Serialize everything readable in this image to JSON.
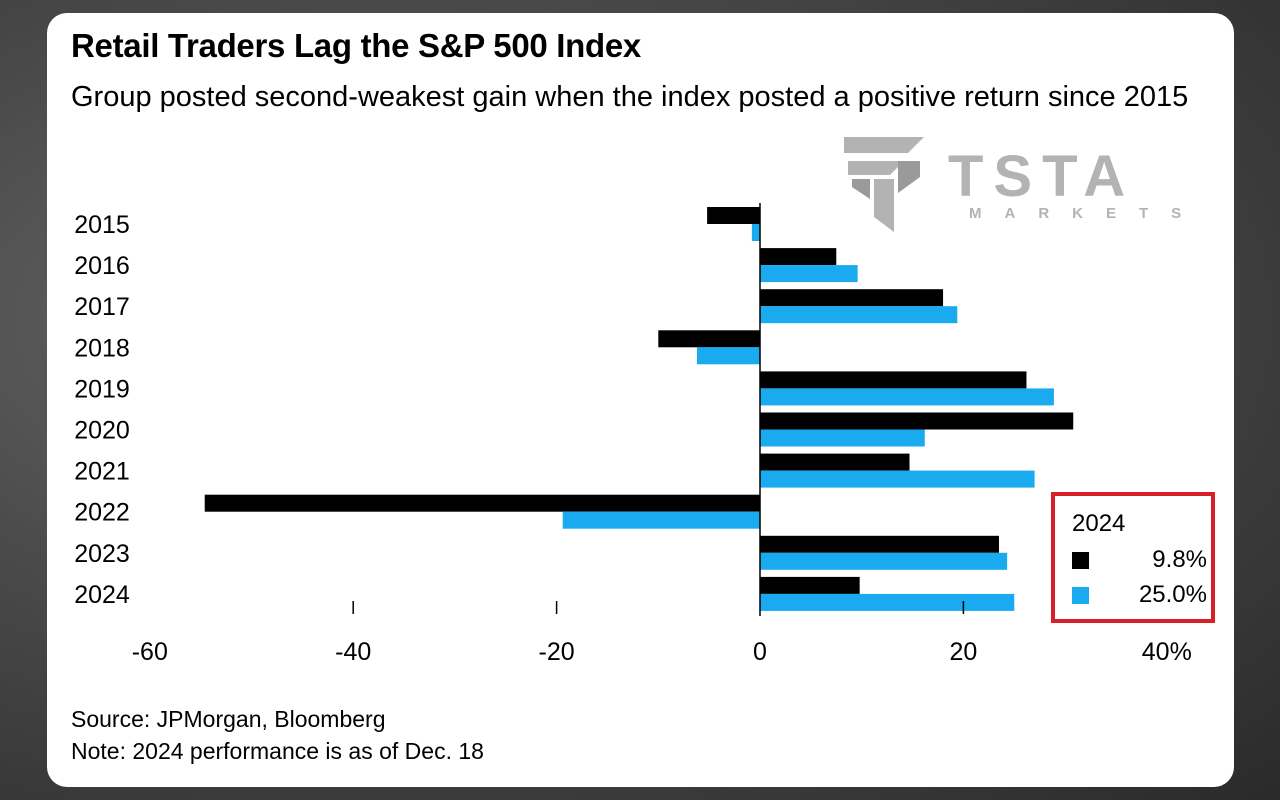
{
  "title": "Retail Traders Lag the S&P 500 Index",
  "subtitle": "Group posted second-weakest gain when the index posted a positive return since 2015",
  "watermark": {
    "word": "TSTA",
    "sub": "MARKETS",
    "color": "#b3b3b3"
  },
  "legend": {
    "title": "2024",
    "items": [
      {
        "value": "9.8%",
        "color": "#000000"
      },
      {
        "value": "25.0%",
        "color": "#1aaaf0"
      }
    ]
  },
  "footer": {
    "source": "Source: JPMorgan, Bloomberg",
    "note": "Note: 2024 performance is as of Dec. 18"
  },
  "chart_data": {
    "type": "bar",
    "orientation": "horizontal",
    "categories": [
      "2015",
      "2016",
      "2017",
      "2018",
      "2019",
      "2020",
      "2021",
      "2022",
      "2023",
      "2024"
    ],
    "series": [
      {
        "color": "#000000",
        "values": [
          -5.2,
          7.5,
          18.0,
          -10.0,
          26.2,
          30.8,
          14.7,
          -54.6,
          23.5,
          9.8
        ]
      },
      {
        "color": "#1aaaf0",
        "values": [
          -0.8,
          9.6,
          19.4,
          -6.2,
          28.9,
          16.2,
          27.0,
          -19.4,
          24.3,
          25.0
        ]
      }
    ],
    "xlim": [
      -60,
      40
    ],
    "xticks": [
      "-60",
      "-40",
      "-20",
      "0",
      "20",
      "40%"
    ],
    "xtick_values": [
      -60,
      -40,
      -20,
      0,
      20,
      40
    ],
    "grid": false
  }
}
